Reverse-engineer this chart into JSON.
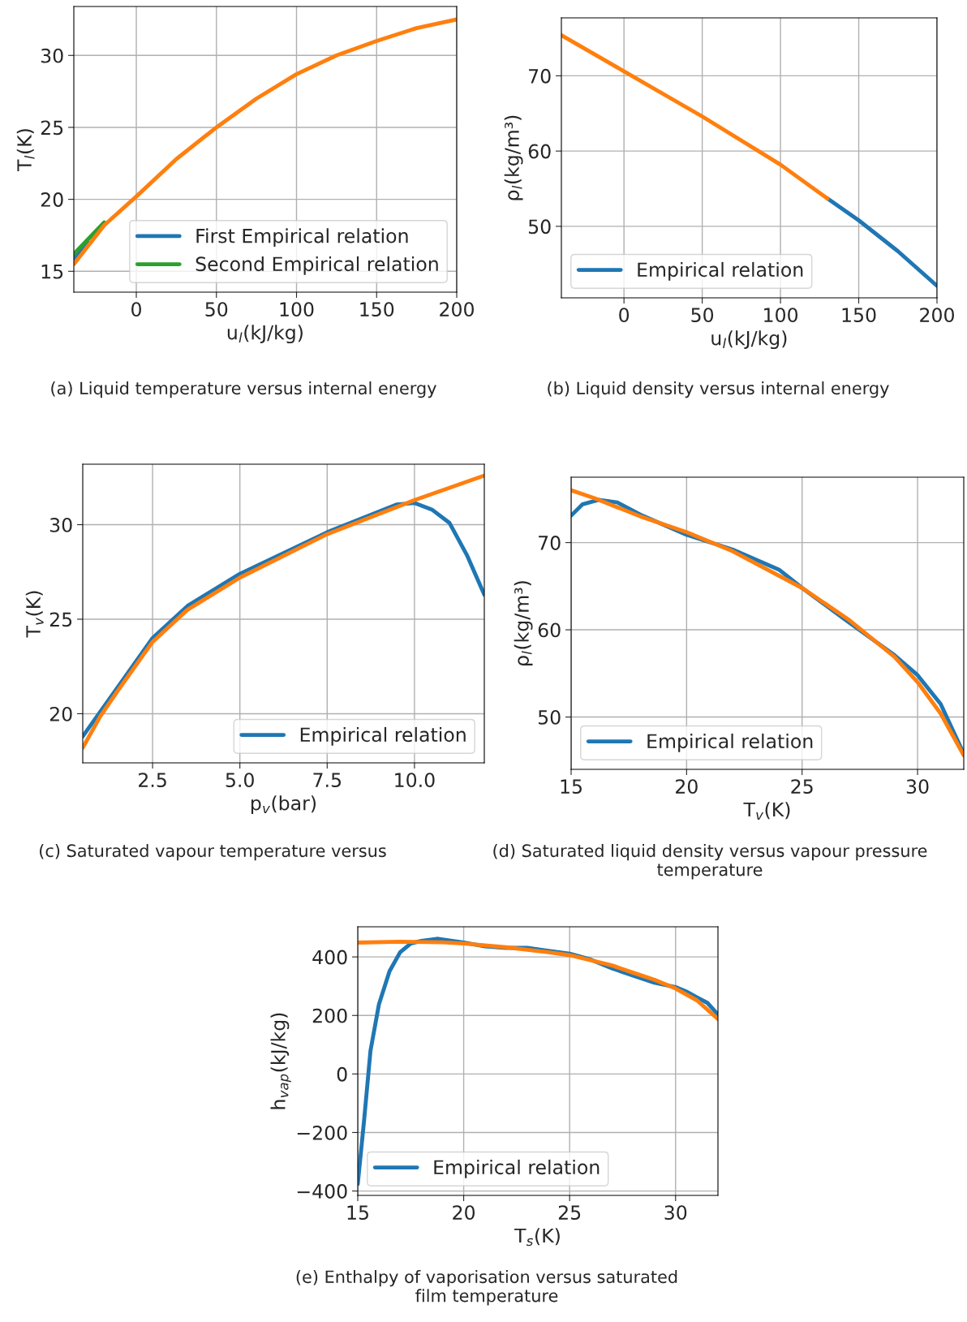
{
  "chart_data": [
    {
      "type": "line",
      "xlabel": "u$_{l}$(kJ/kg)",
      "ylabel": "T$_{l}$(K)",
      "xlim": [
        -39,
        200
      ],
      "xticks": [
        0,
        50,
        100,
        150,
        200
      ],
      "ylim": [
        13.55,
        33.4
      ],
      "yticks": [
        15,
        20,
        25,
        30
      ],
      "grid": true,
      "legend": "lower right",
      "annotations": [
        "(a) Liquid temperature versus internal energy"
      ],
      "x": [
        -39,
        -20,
        0,
        25,
        50,
        75,
        100,
        125,
        150,
        175,
        200
      ],
      "series": [
        {
          "name": "First Empirical relation",
          "color": "#1f77b4",
          "x": [
            -39,
            -30
          ],
          "values": [
            15.9,
            17.0
          ]
        },
        {
          "name": "Second Empirical relation",
          "color": "#2ca02c",
          "x": [
            -39,
            -20
          ],
          "values": [
            16.2,
            18.4
          ]
        },
        {
          "color": "#ff7f0e",
          "values": [
            15.5,
            18.2,
            20.2,
            22.8,
            25.0,
            27.0,
            28.7,
            30.0,
            31.0,
            31.9,
            32.5
          ]
        }
      ]
    },
    {
      "type": "line",
      "xlabel": "u$_{l}$(kJ/kg)",
      "ylabel": "ρ$_{l}$(kg/m³)",
      "xlim": [
        -40,
        200
      ],
      "xticks": [
        0,
        50,
        100,
        150,
        200
      ],
      "ylim": [
        40.5,
        77.7
      ],
      "yticks": [
        50,
        60,
        70
      ],
      "grid": true,
      "legend": "lower left",
      "annotations": [
        "(b) Liquid density versus internal energy"
      ],
      "series": [
        {
          "name": "Empirical relation",
          "color": "#1f77b4",
          "x": [
            130,
            150,
            175,
            200
          ],
          "values": [
            53.7,
            50.8,
            46.7,
            42.1
          ]
        },
        {
          "color": "#ff7f0e",
          "x": [
            -40,
            0,
            50,
            100,
            130
          ],
          "values": [
            75.4,
            70.6,
            64.6,
            58.2,
            53.7
          ]
        }
      ]
    },
    {
      "type": "line",
      "xlabel": "p$_{v}$(bar)",
      "ylabel": "T$_{v}$(K)",
      "xlim": [
        0.5,
        12.0
      ],
      "xticks": [
        {
          "value": 2.5,
          "label": "2.5"
        },
        {
          "value": 5,
          "label": "5.0"
        },
        {
          "value": 7.5,
          "label": "7.5"
        },
        {
          "value": 10,
          "label": "10.0"
        }
      ],
      "ylim": [
        17.4,
        33.2
      ],
      "yticks": [
        20,
        25,
        30
      ],
      "grid": true,
      "legend": "lower right",
      "annotations": [
        "(c) Saturated vapour temperature versus"
      ],
      "series": [
        {
          "name": "Empirical relation",
          "color": "#1f77b4",
          "x": [
            0.5,
            1.0,
            1.5,
            2.5,
            3.5,
            5.0,
            7.5,
            9.5,
            10.0,
            10.5,
            11.0,
            11.5,
            12.0
          ],
          "values": [
            18.8,
            20.1,
            21.4,
            24.0,
            25.7,
            27.4,
            29.6,
            31.07,
            31.15,
            30.8,
            30.1,
            28.4,
            26.3
          ]
        },
        {
          "color": "#ff7f0e",
          "x": [
            0.5,
            1.0,
            1.5,
            2.5,
            3.5,
            5.0,
            7.5,
            10.0,
            12.0
          ],
          "values": [
            18.2,
            19.85,
            21.2,
            23.8,
            25.5,
            27.2,
            29.5,
            31.3,
            32.6
          ]
        }
      ]
    },
    {
      "type": "line",
      "xlabel": "T$_{v}$(K)",
      "ylabel": "ρ$_{l}$(kg/m³)",
      "xlim": [
        15,
        32
      ],
      "xticks": [
        15,
        20,
        25,
        30
      ],
      "ylim": [
        44.0,
        77.5
      ],
      "yticks": [
        50,
        60,
        70
      ],
      "grid": true,
      "legend": "lower left",
      "annotations": [
        "(d) Saturated liquid density versus vapour pressure\ntemperature"
      ],
      "series": [
        {
          "name": "Empirical relation",
          "color": "#1f77b4",
          "x": [
            15,
            15.5,
            16.2,
            17,
            18,
            20,
            22,
            24,
            25,
            27,
            29,
            30,
            31,
            32
          ],
          "values": [
            73.1,
            74.4,
            74.9,
            74.6,
            73.2,
            70.9,
            69.2,
            66.9,
            64.8,
            60.9,
            57.1,
            54.8,
            51.5,
            45.8
          ]
        },
        {
          "color": "#ff7f0e",
          "x": [
            15,
            16,
            18,
            20,
            22,
            25,
            27,
            29,
            30,
            31,
            32
          ],
          "values": [
            76.0,
            75.1,
            73.0,
            71.2,
            69.0,
            64.8,
            61.2,
            56.9,
            54.0,
            50.4,
            45.6
          ]
        }
      ]
    },
    {
      "type": "line",
      "xlabel": "T$_{s}$(K)",
      "ylabel": "h$_{vap}$(kJ/kg)",
      "xlim": [
        15,
        32
      ],
      "xticks": [
        15,
        20,
        25,
        30
      ],
      "ylim": [
        -415,
        503
      ],
      "yticks": [
        {
          "value": -400,
          "label": "−400"
        },
        {
          "value": -200,
          "label": "−200"
        },
        0,
        200,
        400
      ],
      "grid": true,
      "legend": "lower left",
      "annotations": [
        "(e) Enthalpy of vaporisation versus saturated\nfilm temperature"
      ],
      "series": [
        {
          "name": "Empirical relation",
          "color": "#1f77b4",
          "x": [
            15,
            15.3,
            15.6,
            16,
            16.5,
            17,
            17.5,
            18,
            18.8,
            20,
            21,
            22,
            23,
            24,
            25,
            26,
            27,
            28,
            29,
            30,
            30.5,
            31,
            31.5,
            32
          ],
          "values": [
            -376,
            -158,
            79,
            238,
            351,
            416,
            446,
            455,
            462,
            449,
            436,
            431,
            431,
            421,
            411,
            391,
            361,
            336,
            312,
            297,
            282,
            262,
            243,
            203
          ]
        },
        {
          "color": "#ff7f0e",
          "x": [
            15,
            17,
            19,
            20,
            22,
            24,
            25,
            27,
            28,
            29,
            30,
            31,
            32
          ],
          "values": [
            449,
            452,
            450,
            446,
            433,
            416,
            406,
            371,
            346,
            322,
            292,
            252,
            188
          ]
        }
      ]
    }
  ]
}
